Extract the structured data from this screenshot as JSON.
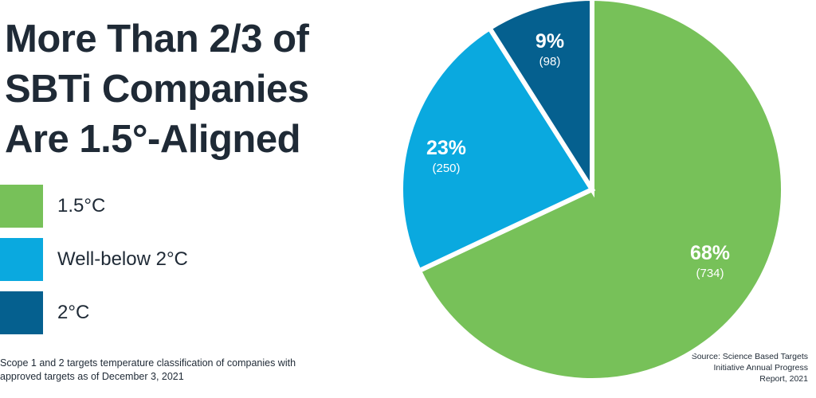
{
  "title": {
    "line1": "More Than 2/3 of",
    "line2": "SBTi Companies",
    "line3": "Are 1.5°-Aligned"
  },
  "legend": [
    {
      "label": "1.5°C",
      "color": "#77c159"
    },
    {
      "label": "Well-below 2°C",
      "color": "#0aa9df"
    },
    {
      "label": "2°C",
      "color": "#05608f"
    }
  ],
  "footnote": "Scope 1 and 2 targets temperature classification of companies with approved targets as of December 3, 2021",
  "source": "Source: Science Based Targets Initiative Annual Progress Report, 2021",
  "chart_data": {
    "type": "pie",
    "title": "More Than 2/3 of SBTi Companies Are 1.5°-Aligned",
    "slices": [
      {
        "label": "1.5°C",
        "percent": 68,
        "percent_label": "68%",
        "count": 734,
        "count_label": "(734)",
        "color": "#77c159"
      },
      {
        "label": "Well-below 2°C",
        "percent": 23,
        "percent_label": "23%",
        "count": 250,
        "count_label": "(250)",
        "color": "#0aa9df"
      },
      {
        "label": "2°C",
        "percent": 9,
        "percent_label": "9%",
        "count": 98,
        "count_label": "(98)",
        "color": "#05608f"
      }
    ],
    "start": "top, clockwise",
    "legend_position": "left"
  }
}
